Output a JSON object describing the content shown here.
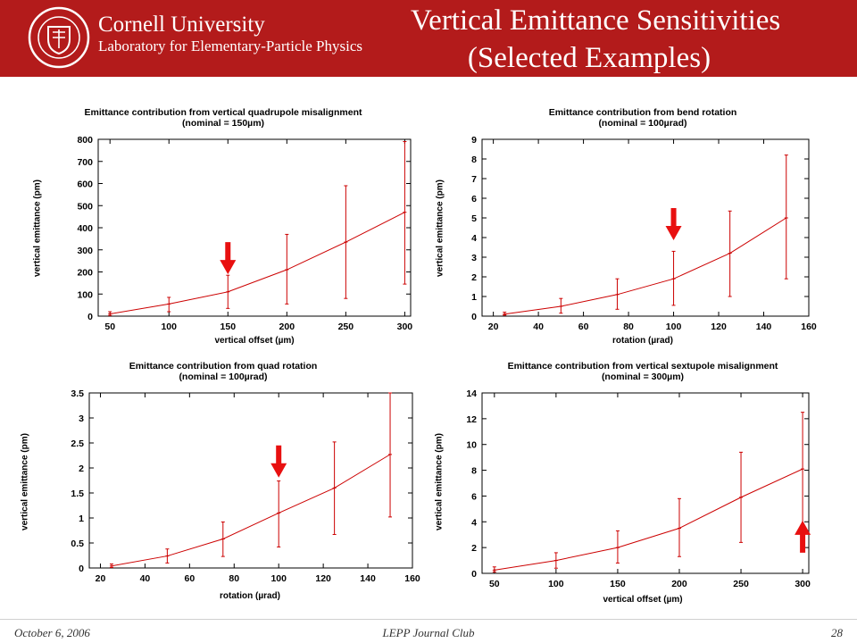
{
  "header": {
    "university": "Cornell University",
    "lab": "Laboratory for Elementary-Particle Physics",
    "title_line1": "Vertical Emittance Sensitivities",
    "title_line2": "(Selected Examples)",
    "seal_icon": "cornell-seal-icon",
    "banner_color": "#b31b1b"
  },
  "footer": {
    "date": "October 6, 2006",
    "center": "LEPP Journal Club",
    "page": "28"
  },
  "colors": {
    "series": "#cc0000",
    "arrow": "#e81010",
    "axis": "#000000"
  },
  "chart_data": [
    {
      "type": "line",
      "title": "Emittance contribution from vertical quadrupole misalignment",
      "subtitle": "(nominal = 150µm)",
      "xlabel": "vertical offset (µm)",
      "ylabel": "vertical emittance (pm)",
      "xlim": [
        40,
        305
      ],
      "ylim": [
        0,
        800
      ],
      "xticks": [
        50,
        100,
        150,
        200,
        250,
        300
      ],
      "yticks": [
        0,
        100,
        200,
        300,
        400,
        500,
        600,
        700,
        800
      ],
      "x": [
        50,
        100,
        150,
        200,
        250,
        300
      ],
      "y": [
        10,
        55,
        110,
        210,
        335,
        470
      ],
      "err_low": [
        3,
        20,
        35,
        55,
        80,
        145
      ],
      "err_high": [
        20,
        85,
        185,
        370,
        590,
        790
      ],
      "arrow": {
        "x": 150,
        "y": 335,
        "direction": "down",
        "icon": "down-arrow-icon"
      }
    },
    {
      "type": "line",
      "title": "Emittance contribution from bend rotation",
      "subtitle": "(nominal = 100µrad)",
      "xlabel": "rotation (µrad)",
      "ylabel": "vertical emittance (pm)",
      "xlim": [
        15,
        160
      ],
      "ylim": [
        0,
        9
      ],
      "xticks": [
        20,
        40,
        60,
        80,
        100,
        120,
        140,
        160
      ],
      "yticks": [
        0,
        1,
        2,
        3,
        4,
        5,
        6,
        7,
        8,
        9
      ],
      "x": [
        25,
        50,
        75,
        100,
        125,
        150
      ],
      "y": [
        0.1,
        0.5,
        1.1,
        1.9,
        3.2,
        5.0
      ],
      "err_low": [
        0.05,
        0.15,
        0.35,
        0.55,
        1.0,
        1.9
      ],
      "err_high": [
        0.2,
        0.9,
        1.9,
        3.3,
        5.35,
        8.2
      ],
      "arrow": {
        "x": 100,
        "y": 5.5,
        "direction": "down",
        "icon": "down-arrow-icon"
      }
    },
    {
      "type": "line",
      "title": "Emittance contribution from quad rotation",
      "subtitle": "(nominal = 100µrad)",
      "xlabel": "rotation (µrad)",
      "ylabel": "vertical emittance (pm)",
      "xlim": [
        15,
        160
      ],
      "ylim": [
        0,
        3.5
      ],
      "xticks": [
        20,
        40,
        60,
        80,
        100,
        120,
        140,
        160
      ],
      "yticks": [
        0,
        0.5,
        1,
        1.5,
        2,
        2.5,
        3,
        3.5
      ],
      "x": [
        25,
        50,
        75,
        100,
        125,
        150
      ],
      "y": [
        0.04,
        0.24,
        0.58,
        1.1,
        1.6,
        2.27
      ],
      "err_low": [
        0.01,
        0.1,
        0.23,
        0.42,
        0.67,
        1.02
      ],
      "err_high": [
        0.08,
        0.38,
        0.92,
        1.74,
        2.52,
        3.5
      ],
      "arrow": {
        "x": 100,
        "y": 2.45,
        "direction": "down",
        "icon": "down-arrow-icon"
      }
    },
    {
      "type": "line",
      "title": "Emittance contribution from vertical sextupole misalignment",
      "subtitle": "(nominal = 300µm)",
      "xlabel": "vertical offset (µm)",
      "ylabel": "vertical emittance (pm)",
      "xlim": [
        40,
        305
      ],
      "ylim": [
        0,
        14
      ],
      "xticks": [
        50,
        100,
        150,
        200,
        250,
        300
      ],
      "yticks": [
        0,
        2,
        4,
        6,
        8,
        10,
        12,
        14
      ],
      "x": [
        50,
        100,
        150,
        200,
        250,
        300
      ],
      "y": [
        0.25,
        1.0,
        2.0,
        3.5,
        5.9,
        8.1
      ],
      "err_low": [
        0.1,
        0.4,
        0.8,
        1.3,
        2.4,
        3.5
      ],
      "err_high": [
        0.5,
        1.6,
        3.3,
        5.8,
        9.4,
        12.5
      ],
      "arrow": {
        "x": 300,
        "y": 1.6,
        "direction": "up",
        "icon": "up-arrow-icon"
      }
    }
  ]
}
